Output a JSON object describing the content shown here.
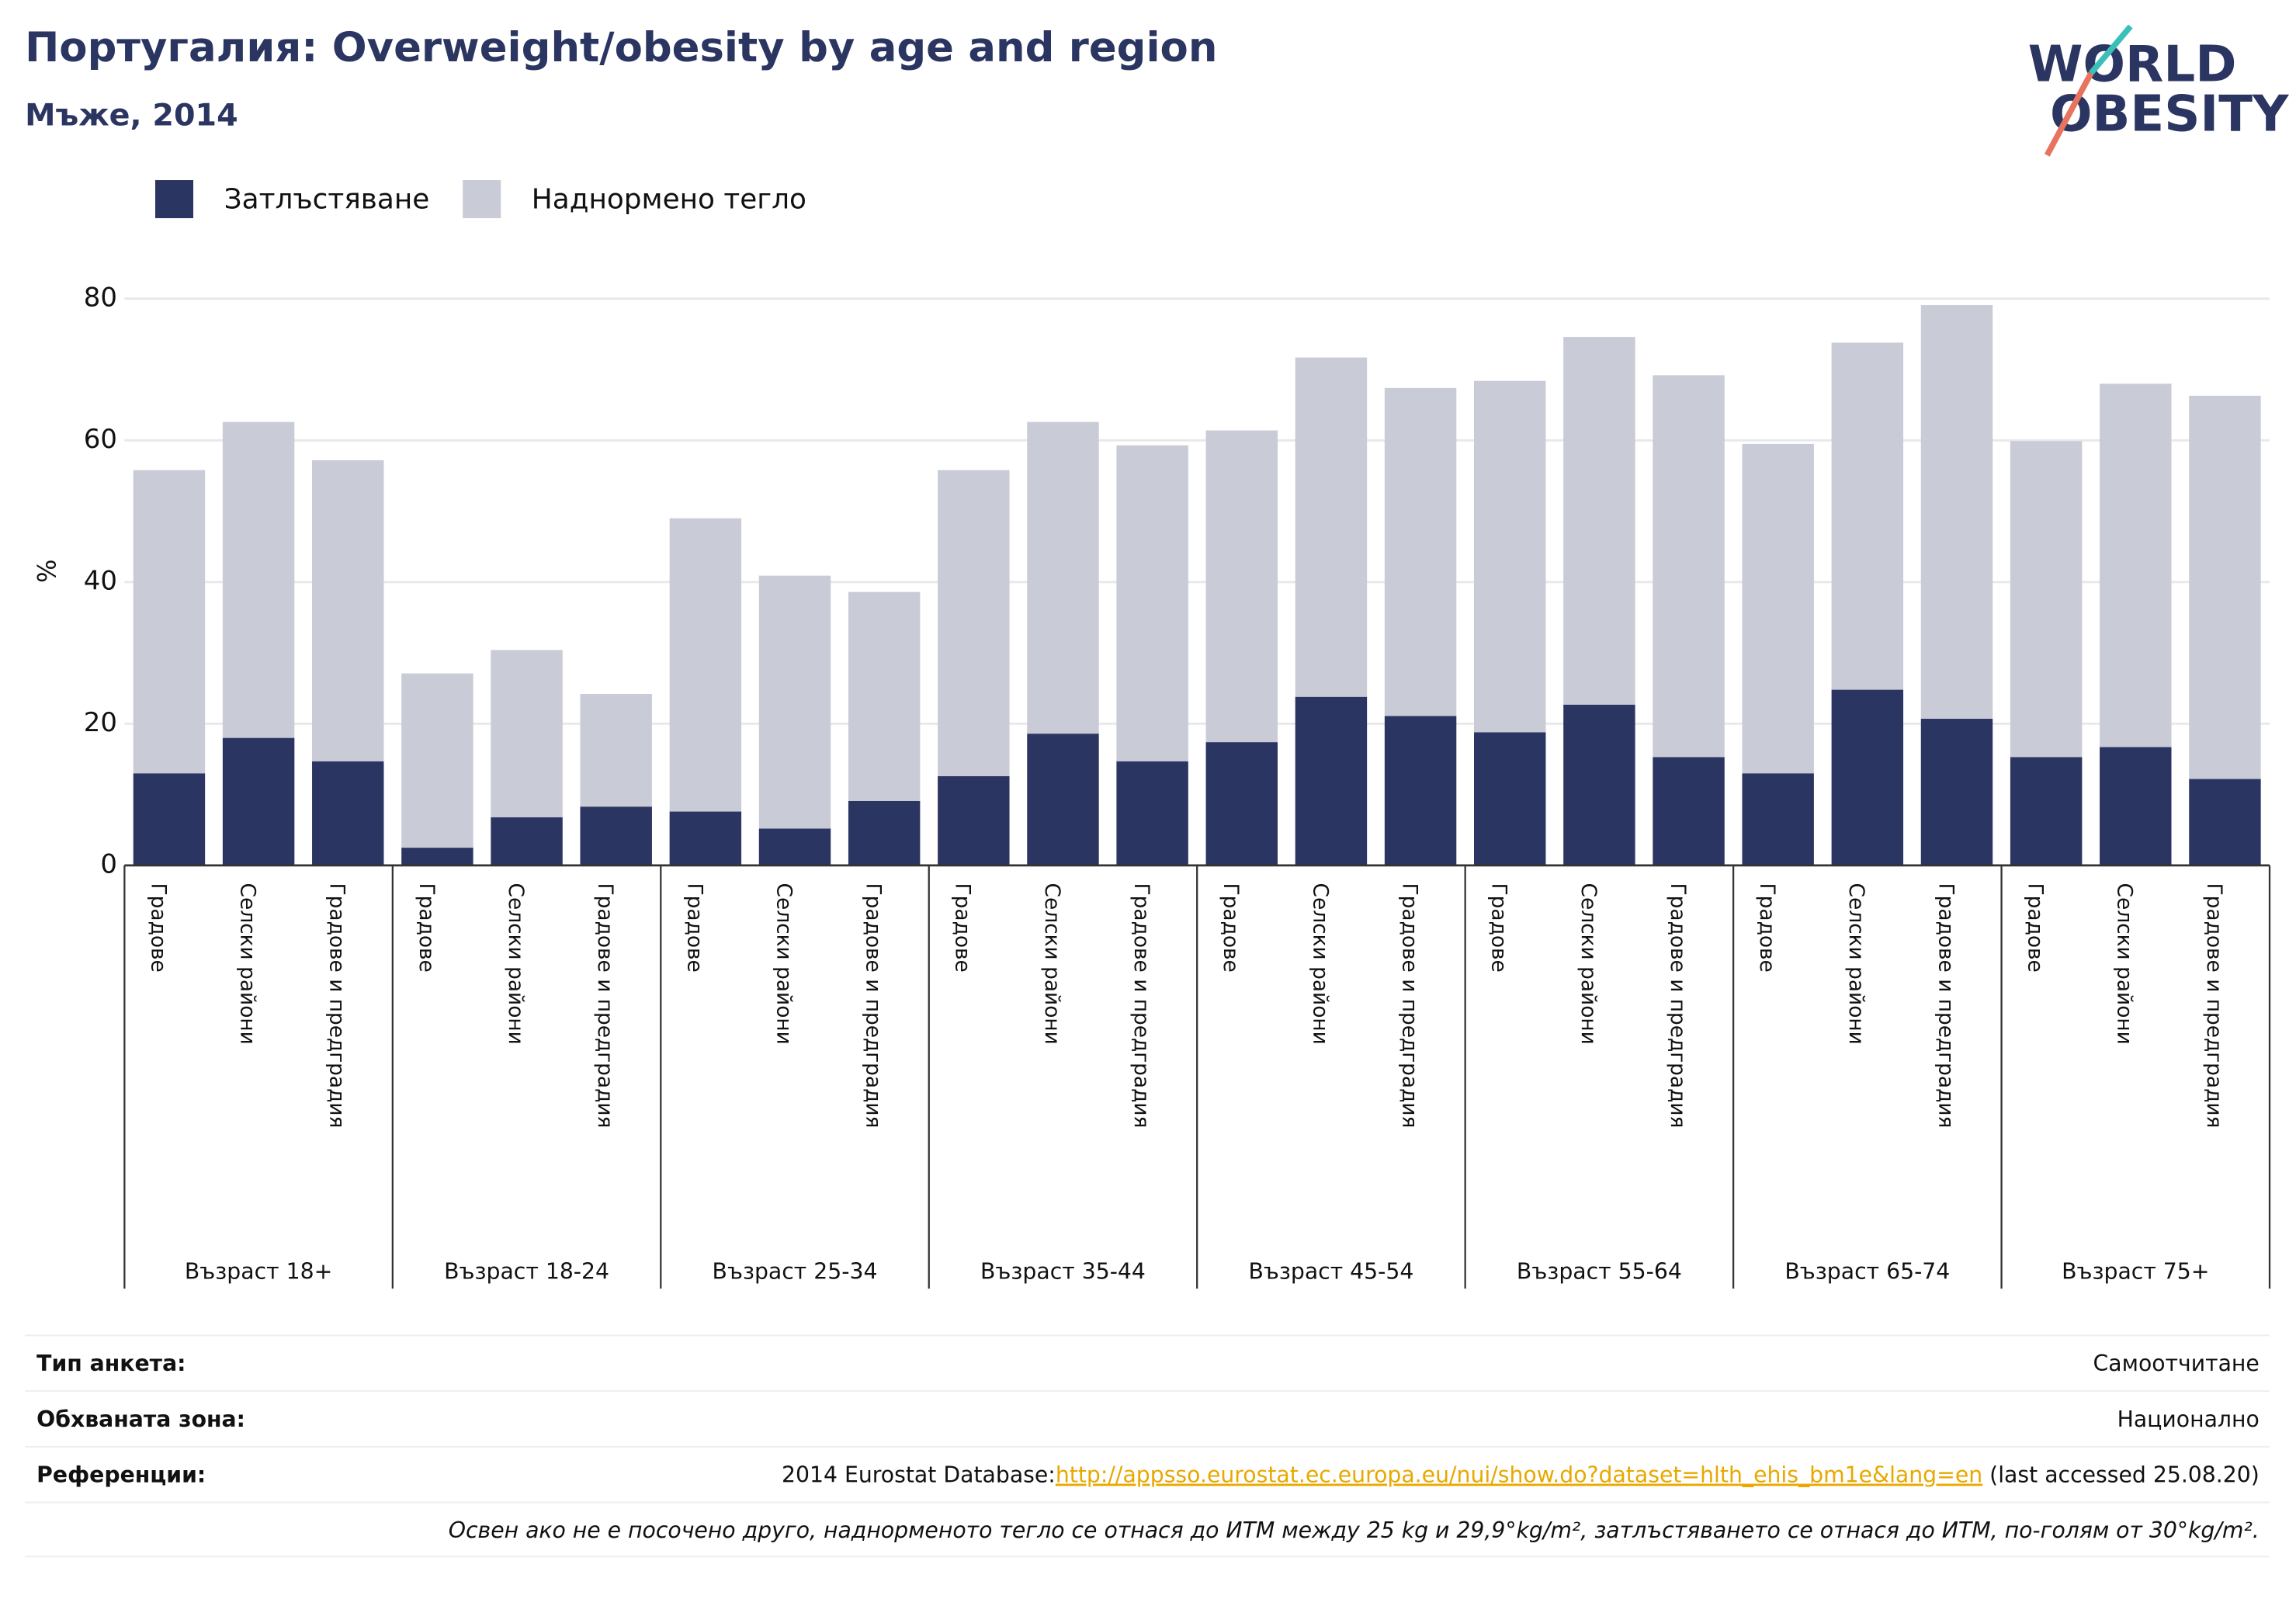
{
  "chart_data": {
    "type": "bar",
    "title": "Португалия: Overweight/obesity by age and region",
    "subtitle": "Мъже, 2014",
    "ylabel": "%",
    "stacked": true,
    "grid": true,
    "legend": "top-left",
    "groups": [
      "Възраст 18+",
      "Възраст 18-24",
      "Възраст 25-34",
      "Възраст 35-44",
      "Възраст 45-54",
      "Възраст 55-64",
      "Възраст 65-74",
      "Възраст 75+"
    ],
    "categories": [
      "Градове",
      "Селски райони",
      "Градове и предградия",
      "Градове",
      "Селски райони",
      "Градове и предградия",
      "Градове",
      "Селски райони",
      "Градове и предградия",
      "Градове",
      "Селски райони",
      "Градове и предградия",
      "Градове",
      "Селски райони",
      "Градове и предградия",
      "Градове",
      "Селски райони",
      "Градове и предградия",
      "Градове",
      "Селски райони",
      "Градове и предградия",
      "Градове",
      "Селски райони",
      "Градове и предградия"
    ],
    "series": [
      {
        "name": "Затлъстяване",
        "color": "#2b3561",
        "values": [
          13.0,
          18.0,
          14.7,
          2.5,
          6.8,
          8.3,
          7.6,
          5.2,
          9.1,
          12.6,
          18.6,
          14.7,
          17.4,
          23.8,
          21.1,
          18.8,
          22.7,
          15.3,
          13.0,
          24.8,
          20.7,
          15.3,
          16.7,
          12.2
        ]
      },
      {
        "name": "Наднормено тегло",
        "color": "#c9cbd6",
        "values": [
          42.8,
          44.6,
          42.5,
          24.6,
          23.6,
          15.9,
          41.4,
          35.7,
          29.5,
          43.2,
          44.0,
          44.6,
          44.0,
          47.9,
          46.3,
          49.6,
          51.9,
          53.9,
          46.5,
          49.0,
          58.4,
          44.6,
          51.3,
          54.1
        ]
      }
    ],
    "ylim": [
      0,
      80
    ],
    "yticks": [
      0,
      20,
      40,
      60,
      80
    ]
  },
  "logo": {
    "line1": "WORLD",
    "line2": "OBESITY"
  },
  "footer": {
    "rows": [
      {
        "label": "Тип анкета:",
        "value": "Самоотчитане"
      },
      {
        "label": "Обхваната зона:",
        "value": "Национално"
      }
    ],
    "reference": {
      "label": "Референции:",
      "prefix": "2014 Eurostat Database:",
      "link": "http://appsso.eurostat.ec.europa.eu/nui/show.do?dataset=hlth_ehis_bm1e&lang=en",
      "suffix": " (last accessed 25.08.20)"
    },
    "note": "Освен ако не е посочено друго, наднорменото тегло се отнася до ИТМ между 25 kg и 29,9°kg/m², затлъстяването се отнася до ИТМ, по-голям от 30°kg/m²."
  }
}
